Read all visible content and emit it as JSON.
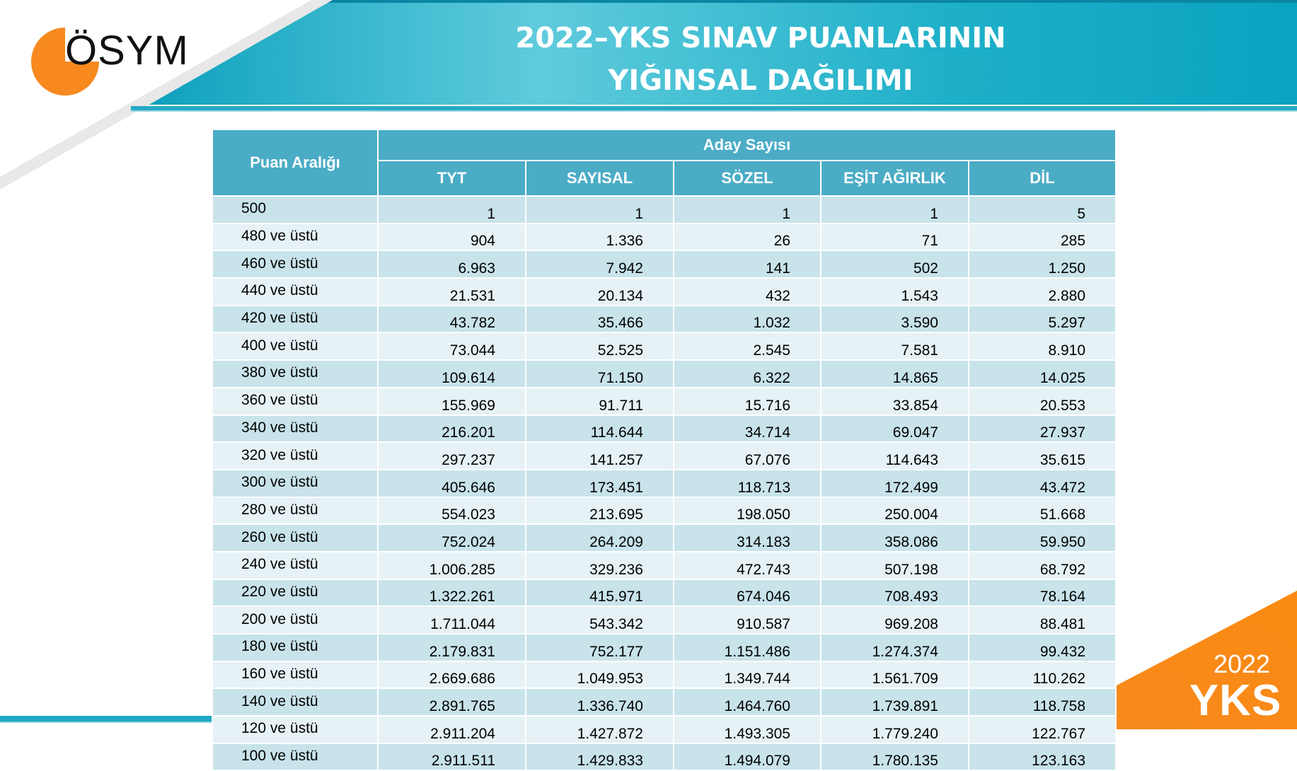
{
  "logo": {
    "text": "ÖSYM",
    "icon": "osym-logo-icon"
  },
  "title": {
    "line1": "2022–YKS SINAV PUANLARININ",
    "line2": "YIĞINSAL DAĞILIMI"
  },
  "badge": {
    "year": "2022",
    "name": "YKS"
  },
  "colors": {
    "header_teal": "#4bacc6",
    "band_teal": "#0ea4c0",
    "orange": "#f7891f",
    "row_dark": "#c8e3ea",
    "row_light": "#e6f2f5"
  },
  "table": {
    "range_header": "Puan Aralığı",
    "group_header": "Aday Sayısı",
    "columns": [
      "TYT",
      "SAYISAL",
      "SÖZEL",
      "EŞİT AĞIRLIK",
      "DİL"
    ],
    "rows": [
      {
        "range": "500",
        "values": [
          "1",
          "1",
          "1",
          "1",
          "5"
        ]
      },
      {
        "range": "480 ve üstü",
        "values": [
          "904",
          "1.336",
          "26",
          "71",
          "285"
        ]
      },
      {
        "range": "460 ve üstü",
        "values": [
          "6.963",
          "7.942",
          "141",
          "502",
          "1.250"
        ]
      },
      {
        "range": "440 ve üstü",
        "values": [
          "21.531",
          "20.134",
          "432",
          "1.543",
          "2.880"
        ]
      },
      {
        "range": "420 ve üstü",
        "values": [
          "43.782",
          "35.466",
          "1.032",
          "3.590",
          "5.297"
        ]
      },
      {
        "range": "400 ve üstü",
        "values": [
          "73.044",
          "52.525",
          "2.545",
          "7.581",
          "8.910"
        ]
      },
      {
        "range": "380 ve üstü",
        "values": [
          "109.614",
          "71.150",
          "6.322",
          "14.865",
          "14.025"
        ]
      },
      {
        "range": "360 ve üstü",
        "values": [
          "155.969",
          "91.711",
          "15.716",
          "33.854",
          "20.553"
        ]
      },
      {
        "range": "340 ve üstü",
        "values": [
          "216.201",
          "114.644",
          "34.714",
          "69.047",
          "27.937"
        ]
      },
      {
        "range": "320 ve üstü",
        "values": [
          "297.237",
          "141.257",
          "67.076",
          "114.643",
          "35.615"
        ]
      },
      {
        "range": "300 ve üstü",
        "values": [
          "405.646",
          "173.451",
          "118.713",
          "172.499",
          "43.472"
        ]
      },
      {
        "range": "280 ve üstü",
        "values": [
          "554.023",
          "213.695",
          "198.050",
          "250.004",
          "51.668"
        ]
      },
      {
        "range": "260 ve üstü",
        "values": [
          "752.024",
          "264.209",
          "314.183",
          "358.086",
          "59.950"
        ]
      },
      {
        "range": "240 ve üstü",
        "values": [
          "1.006.285",
          "329.236",
          "472.743",
          "507.198",
          "68.792"
        ]
      },
      {
        "range": "220 ve üstü",
        "values": [
          "1.322.261",
          "415.971",
          "674.046",
          "708.493",
          "78.164"
        ]
      },
      {
        "range": "200 ve üstü",
        "values": [
          "1.711.044",
          "543.342",
          "910.587",
          "969.208",
          "88.481"
        ]
      },
      {
        "range": "180 ve üstü",
        "values": [
          "2.179.831",
          "752.177",
          "1.151.486",
          "1.274.374",
          "99.432"
        ]
      },
      {
        "range": "160 ve üstü",
        "values": [
          "2.669.686",
          "1.049.953",
          "1.349.744",
          "1.561.709",
          "110.262"
        ]
      },
      {
        "range": "140 ve üstü",
        "values": [
          "2.891.765",
          "1.336.740",
          "1.464.760",
          "1.739.891",
          "118.758"
        ]
      },
      {
        "range": "120 ve üstü",
        "values": [
          "2.911.204",
          "1.427.872",
          "1.493.305",
          "1.779.240",
          "122.767"
        ]
      },
      {
        "range": "100 ve üstü",
        "values": [
          "2.911.511",
          "1.429.833",
          "1.494.079",
          "1.780.135",
          "123.163"
        ]
      }
    ]
  }
}
